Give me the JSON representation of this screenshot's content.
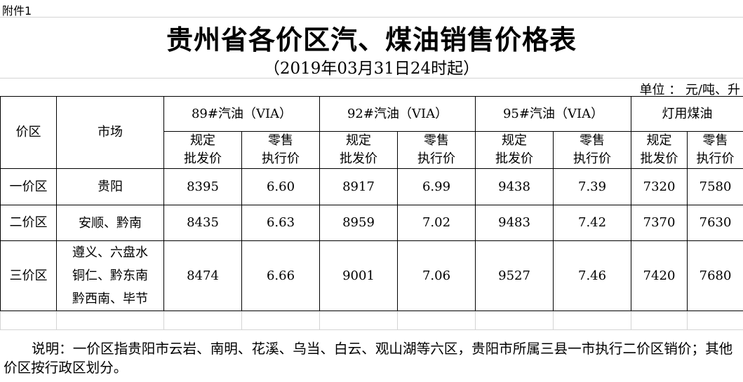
{
  "attachment": "附件1",
  "title": "贵州省各价区汽、煤油销售价格表",
  "subtitle": "（2019年03月31日24时起）",
  "unit": "单位 ： 元/吨、升",
  "table": {
    "header": {
      "zone": "价区",
      "market": "市场",
      "groups": [
        "89#汽油（VIA）",
        "92#汽油（VIA）",
        "95#汽油（VIA）",
        "灯用煤油"
      ],
      "subheaders": [
        [
          "规定",
          "批发价"
        ],
        [
          "零售",
          "执行价"
        ],
        [
          "规定",
          "批发价"
        ],
        [
          "零售",
          "执行价"
        ],
        [
          "规定",
          "批发价"
        ],
        [
          "零售",
          "执行价"
        ],
        [
          "规定",
          "批发价"
        ],
        [
          "零售",
          "执行价"
        ]
      ]
    },
    "rows": [
      {
        "zone": "一价区",
        "markets": [
          "贵阳"
        ],
        "values": [
          "8395",
          "6.60",
          "8917",
          "6.99",
          "9438",
          "7.39",
          "7320",
          "7580"
        ]
      },
      {
        "zone": "二价区",
        "markets": [
          "安顺、黔南"
        ],
        "values": [
          "8435",
          "6.63",
          "8959",
          "7.02",
          "9483",
          "7.42",
          "7370",
          "7630"
        ]
      },
      {
        "zone": "三价区",
        "markets": [
          "遵义、六盘水",
          "铜仁、黔东南",
          "黔西南、毕节"
        ],
        "values": [
          "8474",
          "6.66",
          "9001",
          "7.06",
          "9527",
          "7.46",
          "7420",
          "7680"
        ]
      }
    ]
  },
  "note": "说明：一价区指贵阳市云岩、南明、花溪、乌当、白云、观山湖等六区，贵阳市所属三县一市执行二价区销价；其他价区按行政区划分。"
}
